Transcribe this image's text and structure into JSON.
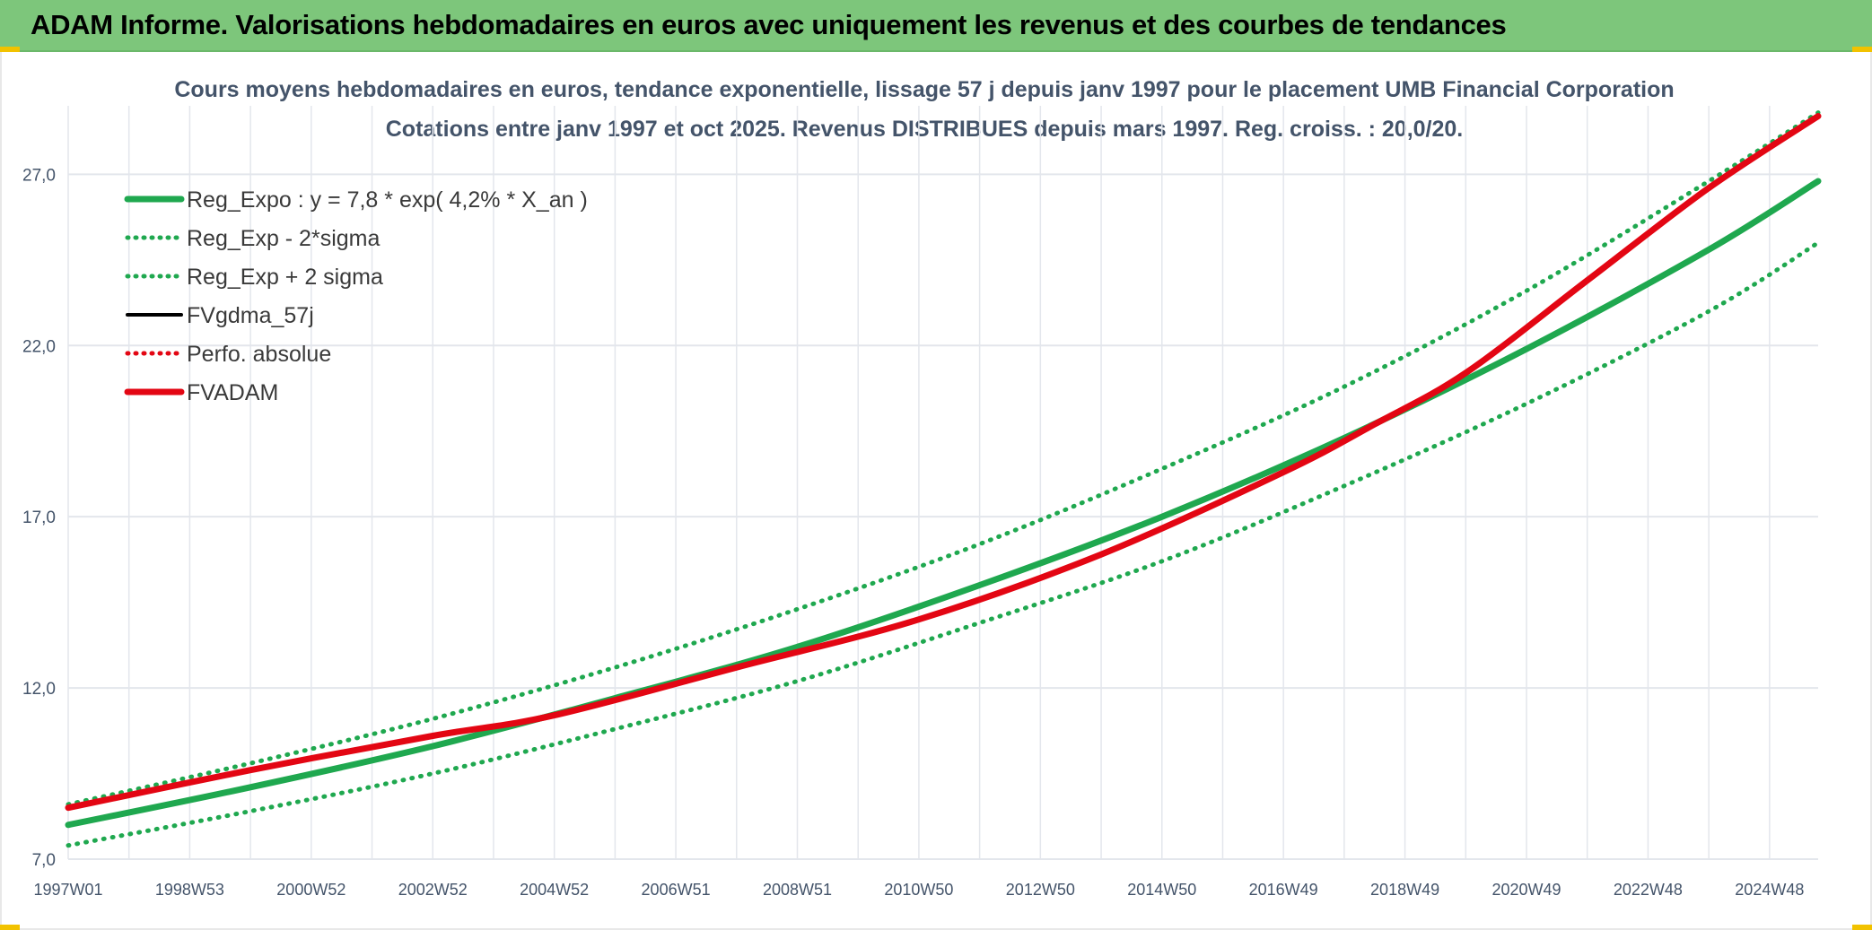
{
  "banner": {
    "title": "ADAM Informe. Valorisations hebdomadaires en euros avec uniquement les revenus et des courbes de tendances"
  },
  "colors": {
    "banner_bg": "#7dc67b",
    "accent_corner": "#f2c200",
    "reg_green": "#1fa84f",
    "fvadam_red": "#e30613",
    "grid": "#e3e6ec",
    "axis_text": "#44546a"
  },
  "chart_data": {
    "type": "line",
    "title": "Cours moyens hebdomadaires en euros, tendance exponentielle, lissage 57 j depuis janv 1997 pour le placement UMB Financial Corporation",
    "subtitle": "Cotations entre janv 1997 et oct 2025. Revenus DISTRIBUES depuis mars 1997. Reg. croiss. : 20,0/20.",
    "xlabel": "",
    "ylabel": "",
    "x_range": [
      1997.0,
      2025.8
    ],
    "ylim": [
      7.0,
      29.0
    ],
    "y_ticks": [
      7.0,
      12.0,
      17.0,
      22.0,
      27.0
    ],
    "y_tick_labels": [
      "7,0",
      "12,0",
      "17,0",
      "22,0",
      "27,0"
    ],
    "x_ticks": [
      1997.0,
      1999.0,
      2001.0,
      2003.0,
      2005.0,
      2007.0,
      2009.0,
      2011.0,
      2013.0,
      2015.0,
      2017.0,
      2019.0,
      2021.0,
      2023.0,
      2025.0
    ],
    "x_tick_labels": [
      "1997W01",
      "1998W53",
      "2000W52",
      "2002W52",
      "2004W52",
      "2006W51",
      "2008W51",
      "2010W50",
      "2012W50",
      "2014W50",
      "2016W49",
      "2018W49",
      "2020W49",
      "2022W48",
      "2024W48"
    ],
    "grid": true,
    "legend_position": "top-left",
    "series": [
      {
        "name": "Reg_Expo : y = 7,8 * exp( 4,2% *  X_an )",
        "style": "solid-thick",
        "color": "#1fa84f",
        "x": [
          1997,
          2000,
          2003,
          2006,
          2009,
          2012,
          2015,
          2018,
          2021,
          2024,
          2025.8
        ],
        "values": [
          8.0,
          9.1,
          10.3,
          11.7,
          13.2,
          15.0,
          17.0,
          19.3,
          21.9,
          24.8,
          26.8
        ]
      },
      {
        "name": "Reg_Exp - 2*sigma",
        "style": "dotted",
        "color": "#1fa84f",
        "x": [
          1997,
          2000,
          2003,
          2006,
          2009,
          2012,
          2015,
          2018,
          2021,
          2024,
          2025.8
        ],
        "values": [
          7.4,
          8.4,
          9.5,
          10.8,
          12.2,
          13.9,
          15.7,
          17.9,
          20.3,
          23.0,
          25.0
        ]
      },
      {
        "name": "Reg_Exp + 2 sigma",
        "style": "dotted",
        "color": "#1fa84f",
        "x": [
          1997,
          2000,
          2003,
          2006,
          2009,
          2012,
          2015,
          2018,
          2021,
          2024,
          2025.8
        ],
        "values": [
          8.6,
          9.8,
          11.1,
          12.6,
          14.3,
          16.2,
          18.4,
          20.8,
          23.6,
          26.8,
          28.8
        ]
      },
      {
        "name": "FVgdma_57j",
        "style": "solid",
        "color": "#000000",
        "x": [],
        "values": []
      },
      {
        "name": "Perfo. absolue",
        "style": "dotted",
        "color": "#e30613",
        "x": [],
        "values": []
      },
      {
        "name": "FVADAM",
        "style": "solid-thick",
        "color": "#e30613",
        "x": [
          1997,
          2000,
          2003,
          2005,
          2008,
          2011,
          2014,
          2017,
          2018.5,
          2020,
          2022,
          2024,
          2025.8
        ],
        "values": [
          8.5,
          9.6,
          10.6,
          11.2,
          12.6,
          14.0,
          15.9,
          18.3,
          19.7,
          21.2,
          23.9,
          26.6,
          28.7
        ]
      }
    ]
  }
}
